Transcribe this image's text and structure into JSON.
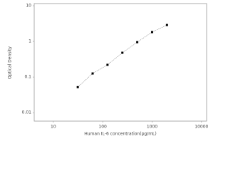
{
  "chart_data": {
    "type": "line",
    "xlabel": "Human IL-6 concentration(pg/mL)",
    "ylabel": "Optical Density",
    "x": [
      31.25,
      62.5,
      125,
      250,
      500,
      1000,
      2000
    ],
    "series": [
      {
        "color": "#000000",
        "values": [
          0.052,
          0.126,
          0.22,
          0.48,
          0.95,
          1.82,
          2.88
        ]
      }
    ],
    "xlim": [
      4.1,
      12700
    ],
    "ylim": [
      0.0058,
      11.5
    ],
    "xticks": [
      10,
      100,
      1000,
      10000
    ],
    "yticks": [
      0.01,
      0.1,
      1,
      10
    ],
    "xscale": "log",
    "yscale": "log",
    "grid": false
  }
}
